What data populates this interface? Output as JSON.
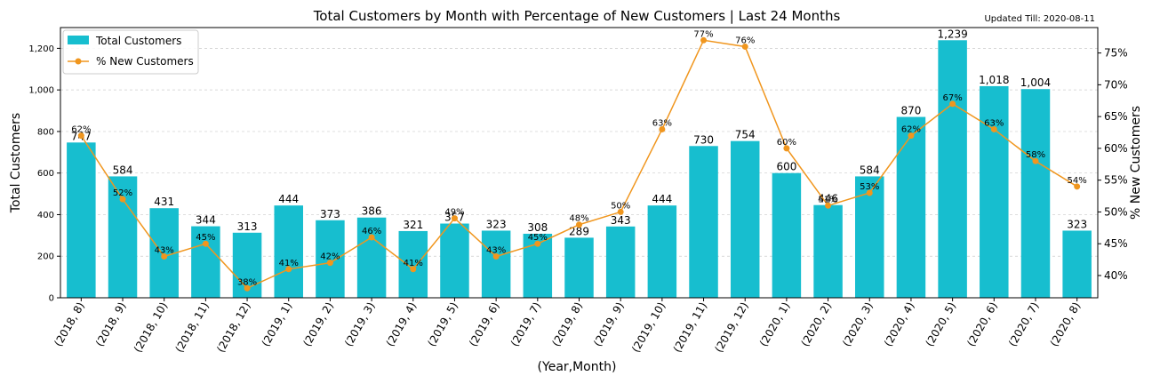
{
  "chart_data": {
    "type": "bar",
    "title": "Total Customers by Month with Percentage of New Customers | Last 24 Months",
    "updated": "Updated Till: 2020-08-11",
    "xlabel": "(Year,Month)",
    "ylabel": "Total Customers",
    "ylabel_right": "% New Customers",
    "ylim": [
      0,
      1300
    ],
    "ylim_right": [
      36.5,
      79
    ],
    "yticks": [
      0,
      200,
      400,
      600,
      800,
      1000,
      1200
    ],
    "yticks_right": [
      40,
      45,
      50,
      55,
      60,
      65,
      70,
      75
    ],
    "grid": true,
    "legend_position": "top-left",
    "categories": [
      "(2018, 8)",
      "(2018, 9)",
      "(2018, 10)",
      "(2018, 11)",
      "(2018, 12)",
      "(2019, 1)",
      "(2019, 2)",
      "(2019, 3)",
      "(2019, 4)",
      "(2019, 5)",
      "(2019, 6)",
      "(2019, 7)",
      "(2019, 8)",
      "(2019, 9)",
      "(2019, 10)",
      "(2019, 11)",
      "(2019, 12)",
      "(2020, 1)",
      "(2020, 2)",
      "(2020, 3)",
      "(2020, 4)",
      "(2020, 5)",
      "(2020, 6)",
      "(2020, 7)",
      "(2020, 8)"
    ],
    "series": [
      {
        "name": "Total Customers",
        "kind": "bar",
        "color": "#17becf",
        "values": [
          747,
          584,
          431,
          344,
          313,
          444,
          373,
          386,
          321,
          357,
          323,
          308,
          289,
          343,
          444,
          730,
          754,
          600,
          446,
          584,
          870,
          1239,
          1018,
          1004,
          323
        ],
        "labels": [
          "747",
          "584",
          "431",
          "344",
          "313",
          "444",
          "373",
          "386",
          "321",
          "357",
          "323",
          "308",
          "289",
          "343",
          "444",
          "730",
          "754",
          "600",
          "446",
          "584",
          "870",
          "1,239",
          "1,018",
          "1,004",
          "323"
        ]
      },
      {
        "name": "% New Customers",
        "kind": "line",
        "color": "#f0961e",
        "values": [
          62,
          52,
          43,
          45,
          38,
          41,
          42,
          46,
          41,
          49,
          43,
          45,
          48,
          50,
          63,
          77,
          76,
          60,
          51,
          53,
          62,
          67,
          63,
          58,
          54
        ],
        "labels": [
          "62%",
          "52%",
          "43%",
          "45%",
          "38%",
          "41%",
          "42%",
          "46%",
          "41%",
          "49%",
          "43%",
          "45%",
          "48%",
          "50%",
          "63%",
          "77%",
          "76%",
          "60%",
          "51%",
          "53%",
          "62%",
          "67%",
          "63%",
          "58%",
          "54%"
        ]
      }
    ]
  }
}
